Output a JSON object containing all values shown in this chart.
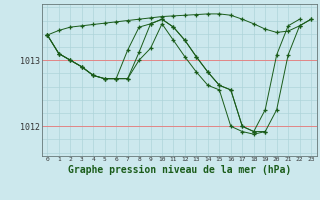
{
  "background_color": "#cce8ed",
  "grid_color_v": "#aed4da",
  "grid_color_h": "#f0a0a0",
  "line_color": "#1a5c1a",
  "xlabel": "Graphe pression niveau de la mer (hPa)",
  "xlabel_fontsize": 7,
  "xlim": [
    -0.5,
    23.5
  ],
  "ylim": [
    1011.55,
    1013.85
  ],
  "yticks": [
    1012,
    1013
  ],
  "xticks": [
    0,
    1,
    2,
    3,
    4,
    5,
    6,
    7,
    8,
    9,
    10,
    11,
    12,
    13,
    14,
    15,
    16,
    17,
    18,
    19,
    20,
    21,
    22,
    23
  ],
  "series": [
    {
      "x": [
        0,
        1,
        2,
        3,
        4,
        5,
        6,
        7,
        8,
        9,
        10,
        11,
        12,
        13,
        14,
        15,
        16,
        17,
        18,
        19,
        20,
        21,
        22,
        23
      ],
      "y": [
        1013.38,
        1013.45,
        1013.5,
        1013.52,
        1013.54,
        1013.56,
        1013.58,
        1013.6,
        1013.62,
        1013.64,
        1013.66,
        1013.67,
        1013.68,
        1013.69,
        1013.7,
        1013.7,
        1013.68,
        1013.62,
        1013.55,
        1013.47,
        1013.42,
        1013.44,
        1013.52,
        1013.62
      ]
    },
    {
      "x": [
        0,
        1,
        2,
        3,
        4,
        5,
        6,
        7,
        8,
        9,
        10,
        11,
        12,
        13,
        14,
        15,
        16,
        17,
        18,
        19,
        20,
        21,
        22,
        23
      ],
      "y": [
        1013.38,
        1013.1,
        1013.0,
        1012.9,
        1012.77,
        1012.72,
        1012.72,
        1013.15,
        1013.5,
        1013.55,
        1013.62,
        1013.5,
        1013.3,
        1013.05,
        1012.82,
        1012.62,
        1012.55,
        1012.0,
        1011.92,
        1011.92,
        1012.25,
        1013.08,
        1013.52,
        1013.62
      ]
    },
    {
      "x": [
        0,
        1,
        2,
        3,
        4,
        5,
        6,
        7,
        8,
        9,
        10,
        11,
        12,
        13,
        14,
        15,
        16,
        17,
        18,
        19,
        20,
        21,
        22
      ],
      "y": [
        1013.38,
        1013.1,
        1013.0,
        1012.9,
        1012.77,
        1012.72,
        1012.72,
        1012.72,
        1013.12,
        1013.55,
        1013.62,
        1013.5,
        1013.3,
        1013.05,
        1012.82,
        1012.62,
        1012.55,
        1012.0,
        1011.92,
        1012.25,
        1013.08,
        1013.52,
        1013.62
      ]
    },
    {
      "x": [
        0,
        1,
        2,
        3,
        4,
        5,
        6,
        7,
        8,
        9,
        10,
        11,
        12,
        13,
        14,
        15,
        16,
        17,
        18,
        19
      ],
      "y": [
        1013.38,
        1013.1,
        1013.0,
        1012.9,
        1012.77,
        1012.72,
        1012.72,
        1012.72,
        1013.0,
        1013.18,
        1013.55,
        1013.3,
        1013.05,
        1012.82,
        1012.62,
        1012.55,
        1012.0,
        1011.92,
        1011.88,
        1011.92
      ]
    }
  ]
}
